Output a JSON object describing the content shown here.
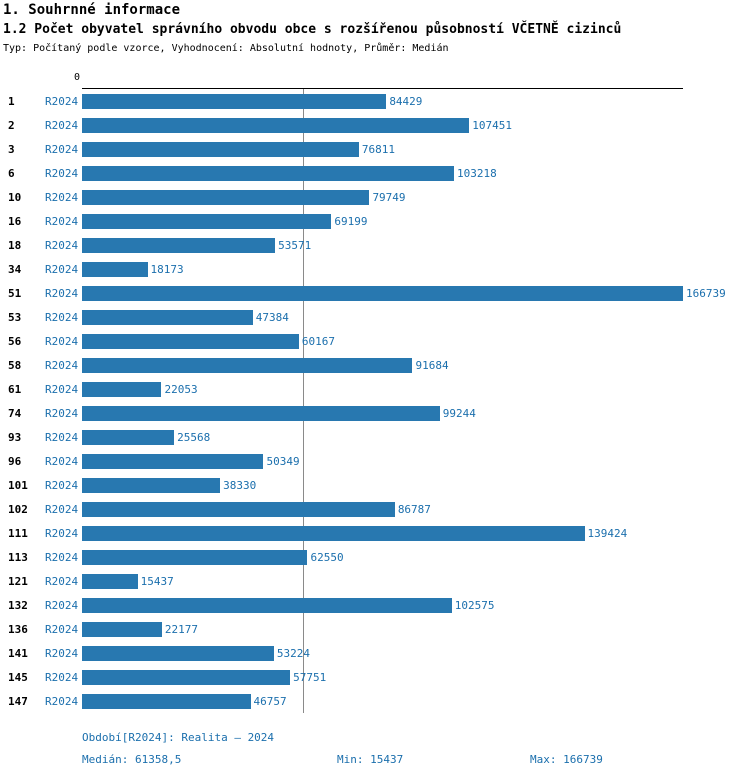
{
  "header": {
    "title": "1. Souhrnné informace",
    "subtitle": "1.2 Počet obyvatel správního obvodu obce s rozšířenou působností VČETNĚ cizinců",
    "meta": "Typ: Počítaný podle vzorce, Vyhodnocení: Absolutní hodnoty, Průměr: Medián"
  },
  "colors": {
    "bar": "#2878b0",
    "label_text": "#1b6fad",
    "median_line": "#8a8a8a"
  },
  "chart_data": {
    "type": "bar",
    "orientation": "horizontal",
    "series_label": "R2024",
    "categories": [
      "1",
      "2",
      "3",
      "6",
      "10",
      "16",
      "18",
      "34",
      "51",
      "53",
      "56",
      "58",
      "61",
      "74",
      "93",
      "96",
      "101",
      "102",
      "111",
      "113",
      "121",
      "132",
      "136",
      "141",
      "145",
      "147"
    ],
    "values": [
      84429,
      107451,
      76811,
      103218,
      79749,
      69199,
      53571,
      18173,
      166739,
      47384,
      60167,
      91684,
      22053,
      99244,
      25568,
      50349,
      38330,
      86787,
      139424,
      62550,
      15437,
      102575,
      22177,
      53224,
      57751,
      46757
    ],
    "xlim": [
      0,
      166739
    ],
    "x_axis_zero_label": "0",
    "median": 61358.5,
    "grid": false,
    "legend": "none"
  },
  "footer": {
    "period": "Období[R2024]: Realita – 2024",
    "median": "Medián: 61358,5",
    "min": "Min: 15437",
    "max": "Max: 166739"
  }
}
